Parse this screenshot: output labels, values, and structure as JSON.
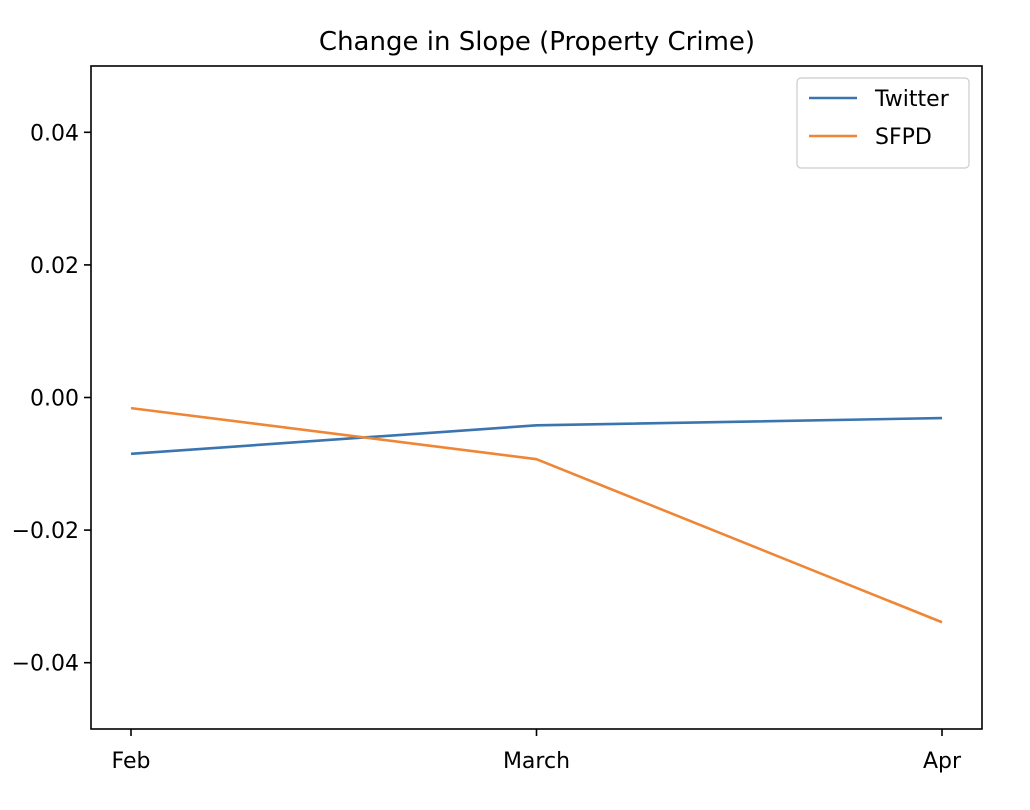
{
  "chart_data": {
    "type": "line",
    "title": "Change in Slope (Property Crime)",
    "xlabel": "",
    "ylabel": "",
    "categories": [
      "Feb",
      "March",
      "Apr"
    ],
    "series": [
      {
        "name": "Twitter",
        "color": "#3b75af",
        "values": [
          -0.0085,
          -0.0042,
          -0.0031
        ]
      },
      {
        "name": "SFPD",
        "color": "#ef8636",
        "values": [
          -0.0016,
          -0.0093,
          -0.0339
        ]
      }
    ],
    "ylim": [
      -0.05,
      0.05
    ],
    "yticks": [
      -0.04,
      -0.02,
      0.0,
      0.02,
      0.04
    ],
    "ytick_labels": [
      "−0.04",
      "−0.02",
      "0.00",
      "0.02",
      "0.04"
    ],
    "grid": false,
    "legend_position": "upper right"
  }
}
